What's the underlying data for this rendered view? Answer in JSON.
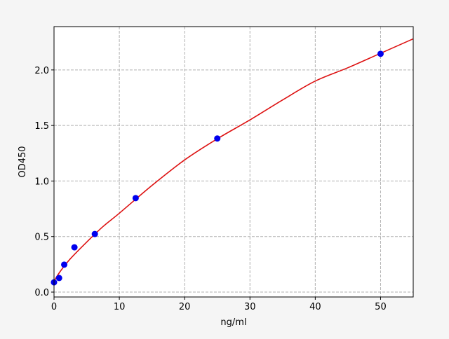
{
  "chart_data": {
    "type": "scatter",
    "title": "",
    "xlabel": "ng/ml",
    "ylabel": "OD450",
    "xlim": [
      0,
      55
    ],
    "ylim": [
      -0.044,
      2.39
    ],
    "xticks": [
      0,
      10,
      20,
      30,
      40,
      50
    ],
    "yticks": [
      0.0,
      0.5,
      1.0,
      1.5,
      2.0
    ],
    "xtick_labels": [
      "0",
      "10",
      "20",
      "30",
      "40",
      "50"
    ],
    "ytick_labels": [
      "0.0",
      "0.5",
      "1.0",
      "1.5",
      "2.0"
    ],
    "grid": true,
    "series": [
      {
        "kind": "points",
        "color": "#0000ee",
        "x": [
          0,
          0.78,
          1.56,
          3.125,
          6.25,
          12.5,
          25,
          50
        ],
        "y": [
          0.088,
          0.127,
          0.247,
          0.403,
          0.523,
          0.846,
          1.383,
          2.145
        ]
      },
      {
        "kind": "fit-curve",
        "color": "#dd1111",
        "x": [
          0,
          1,
          2.5,
          5,
          7.5,
          10,
          15,
          20,
          25,
          30,
          35,
          40,
          45,
          50,
          55
        ],
        "y": [
          0.1,
          0.19,
          0.3,
          0.45,
          0.59,
          0.71,
          0.96,
          1.19,
          1.38,
          1.55,
          1.73,
          1.9,
          2.02,
          2.15,
          2.28
        ]
      }
    ]
  }
}
